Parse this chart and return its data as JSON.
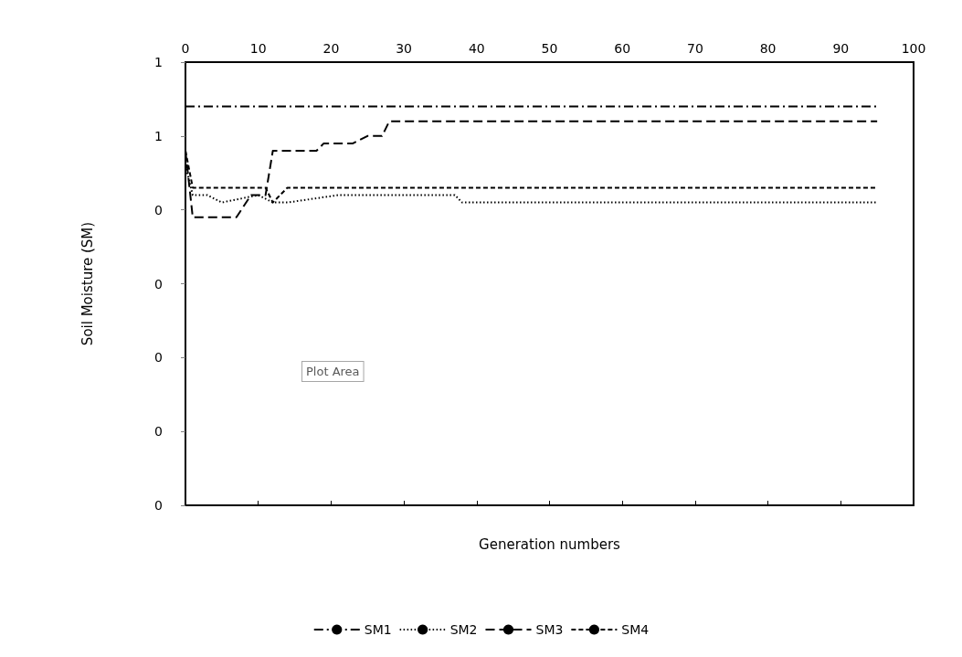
{
  "chart_data": {
    "type": "line",
    "xlabel": "Generation numbers",
    "ylabel": "Soil Moisture (SM)",
    "xlim": [
      0,
      100
    ],
    "xticks": [
      0,
      10,
      20,
      30,
      40,
      50,
      60,
      70,
      80,
      90,
      100
    ],
    "ylim": [
      0,
      0.6
    ],
    "yticks": [
      {
        "value": 0,
        "label": "0"
      },
      {
        "value": 0.1,
        "label": "0"
      },
      {
        "value": 0.2,
        "label": "0"
      },
      {
        "value": 0.3,
        "label": "0"
      },
      {
        "value": 0.4,
        "label": "0"
      },
      {
        "value": 0.5,
        "label": "1"
      },
      {
        "value": 0.6,
        "label": "1"
      }
    ],
    "grid": false,
    "legend": "bottom",
    "marker": "none",
    "annotations": [
      "Plot Area"
    ],
    "series": [
      {
        "name": "SM1",
        "color": "#000000",
        "line_style": "dashdot",
        "x": [
          0,
          5,
          10,
          95
        ],
        "values": [
          0.54,
          0.54,
          0.54,
          0.54
        ]
      },
      {
        "name": "SM2",
        "color": "#000000",
        "line_style": "dotted",
        "x": [
          0,
          1,
          3,
          5,
          10,
          12,
          14,
          21,
          37,
          38,
          95
        ],
        "values": [
          0.46,
          0.42,
          0.42,
          0.41,
          0.42,
          0.41,
          0.41,
          0.42,
          0.42,
          0.41,
          0.41
        ]
      },
      {
        "name": "SM3",
        "color": "#000000",
        "line_style": "dashed",
        "x": [
          0,
          1,
          7,
          9,
          11,
          12,
          13,
          18,
          19,
          23,
          25,
          27,
          28,
          95
        ],
        "values": [
          0.48,
          0.39,
          0.39,
          0.42,
          0.42,
          0.48,
          0.48,
          0.48,
          0.49,
          0.49,
          0.5,
          0.5,
          0.52,
          0.52
        ]
      },
      {
        "name": "SM4",
        "color": "#000000",
        "line_style": "shortdash",
        "x": [
          0,
          1,
          11,
          12,
          14,
          19,
          20,
          95
        ],
        "values": [
          0.48,
          0.43,
          0.43,
          0.41,
          0.43,
          0.43,
          0.43,
          0.43
        ]
      }
    ]
  }
}
